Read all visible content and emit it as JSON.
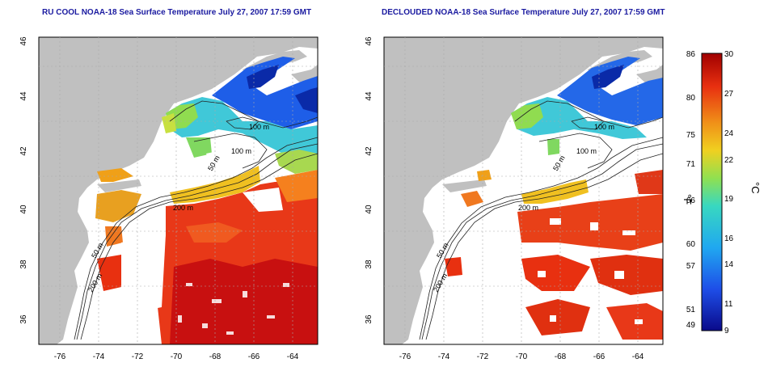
{
  "left_panel": {
    "title": "RU COOL NOAA-18 Sea Surface Temperature July 27, 2007 17:59 GMT",
    "lon_ticks": [
      "-76",
      "-74",
      "-72",
      "-70",
      "-68",
      "-66",
      "-64"
    ],
    "lat_ticks": [
      "36",
      "38",
      "40",
      "42",
      "44",
      "46"
    ],
    "contour_labels": [
      "100 m",
      "100 m",
      "50 m",
      "200 m",
      "50 m",
      "200 m"
    ]
  },
  "right_panel": {
    "title": "DECLOUDED NOAA-18 Sea Surface Temperature July 27, 2007 17:59 GMT",
    "lon_ticks": [
      "-76",
      "-74",
      "-72",
      "-70",
      "-68",
      "-66",
      "-64"
    ],
    "lat_ticks": [
      "36",
      "38",
      "40",
      "42",
      "44",
      "46"
    ],
    "contour_labels": [
      "100 m",
      "100 m",
      "50 m",
      "200 m",
      "50 m",
      "200 m"
    ]
  },
  "colorbar": {
    "unit_f": "°F",
    "unit_c": "°C",
    "f_ticks": [
      "86",
      "80",
      "75",
      "71",
      "66",
      "60",
      "57",
      "51",
      "49"
    ],
    "c_ticks": [
      "30",
      "27",
      "24",
      "22",
      "19",
      "16",
      "14",
      "11",
      "9"
    ],
    "c_min": 9,
    "c_max": 30,
    "colors": {
      "cold": "#0a0a8a",
      "cool": "#1e6ef0",
      "mid": "#38d8d0",
      "mild": "#9de050",
      "warm": "#f0c020",
      "hot": "#e83010",
      "max": "#b00000"
    }
  },
  "colors": {
    "land": "#c0c0c0",
    "ocean": "#ffffff",
    "contour": "#222222",
    "grid": "#aaaaaa"
  }
}
